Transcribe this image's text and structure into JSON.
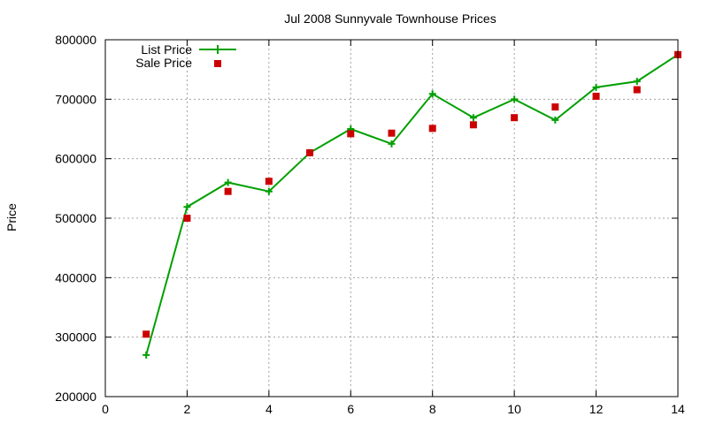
{
  "chart_data": {
    "type": "line",
    "title": "Jul 2008 Sunnyvale Townhouse Prices",
    "xlabel": "",
    "ylabel": "Price",
    "xlim": [
      0,
      14
    ],
    "ylim": [
      200000,
      800000
    ],
    "x_ticks": [
      0,
      2,
      4,
      6,
      8,
      10,
      12,
      14
    ],
    "y_ticks": [
      200000,
      300000,
      400000,
      500000,
      600000,
      700000,
      800000
    ],
    "grid": true,
    "legend_position": "top-left",
    "series": [
      {
        "name": "List Price",
        "style": "lines with plus markers",
        "color": "#00a000",
        "x": [
          1,
          2,
          3,
          4,
          5,
          6,
          7,
          8,
          9,
          10,
          11,
          12,
          13,
          14
        ],
        "y": [
          270000,
          519000,
          560000,
          545000,
          610000,
          650000,
          625000,
          709000,
          669000,
          700000,
          665000,
          720000,
          730000,
          775000
        ]
      },
      {
        "name": "Sale Price",
        "style": "square markers",
        "color": "#cc0000",
        "x": [
          1,
          2,
          3,
          4,
          5,
          6,
          7,
          8,
          9,
          10,
          11,
          12,
          13,
          14
        ],
        "y": [
          305000,
          500000,
          545000,
          562000,
          610000,
          642000,
          643000,
          651000,
          657000,
          669000,
          687000,
          705000,
          716000,
          775000
        ]
      }
    ]
  }
}
